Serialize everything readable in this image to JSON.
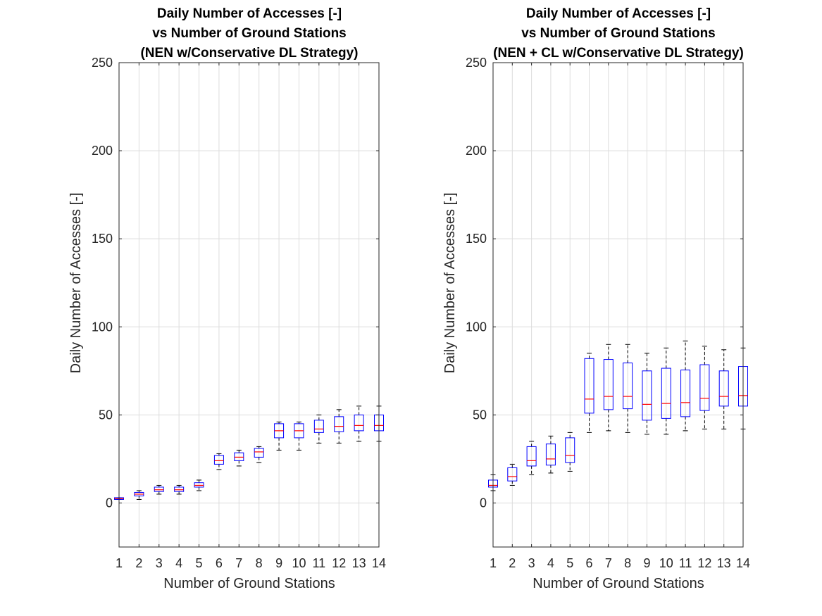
{
  "chart_data": [
    {
      "type": "box",
      "title": [
        "Daily Number of Accesses [-]",
        "vs Number of Ground Stations",
        "(NEN w/Conservative DL Strategy)"
      ],
      "xlabel": "Number of Ground Stations",
      "ylabel": "Daily Number of Accesses [-]",
      "xlim": [
        1,
        14
      ],
      "ylim": [
        -25,
        250
      ],
      "xticks": [
        1,
        2,
        3,
        4,
        5,
        6,
        7,
        8,
        9,
        10,
        11,
        12,
        13,
        14
      ],
      "yticks": [
        0,
        50,
        100,
        150,
        200,
        250
      ],
      "grid": true,
      "boxes": [
        {
          "x": 1,
          "min": 2,
          "q1": 2,
          "median": 2.5,
          "q3": 3,
          "max": 3
        },
        {
          "x": 2,
          "min": 2,
          "q1": 4,
          "median": 5,
          "q3": 6,
          "max": 7
        },
        {
          "x": 3,
          "min": 5,
          "q1": 6.5,
          "median": 7.5,
          "q3": 9,
          "max": 10
        },
        {
          "x": 4,
          "min": 5,
          "q1": 6.5,
          "median": 7.5,
          "q3": 9,
          "max": 10
        },
        {
          "x": 5,
          "min": 7,
          "q1": 9,
          "median": 10,
          "q3": 11.5,
          "max": 13
        },
        {
          "x": 6,
          "min": 19,
          "q1": 22,
          "median": 24,
          "q3": 27,
          "max": 28
        },
        {
          "x": 7,
          "min": 21,
          "q1": 24,
          "median": 26,
          "q3": 28.5,
          "max": 30
        },
        {
          "x": 8,
          "min": 23,
          "q1": 26,
          "median": 29,
          "q3": 31,
          "max": 32
        },
        {
          "x": 9,
          "min": 30,
          "q1": 37,
          "median": 41,
          "q3": 45,
          "max": 46
        },
        {
          "x": 10,
          "min": 30,
          "q1": 37,
          "median": 41,
          "q3": 45,
          "max": 46
        },
        {
          "x": 11,
          "min": 34,
          "q1": 40,
          "median": 42,
          "q3": 47,
          "max": 50
        },
        {
          "x": 12,
          "min": 34,
          "q1": 40.5,
          "median": 43.5,
          "q3": 49,
          "max": 53
        },
        {
          "x": 13,
          "min": 35,
          "q1": 41,
          "median": 44,
          "q3": 50,
          "max": 55
        },
        {
          "x": 14,
          "min": 35,
          "q1": 41,
          "median": 44,
          "q3": 50,
          "max": 55
        }
      ]
    },
    {
      "type": "box",
      "title": [
        "Daily Number of Accesses [-]",
        "vs Number of Ground Stations",
        "(NEN + CL w/Conservative DL Strategy)"
      ],
      "xlabel": "Number of Ground Stations",
      "ylabel": "Daily Number of Accesses [-]",
      "xlim": [
        1,
        14
      ],
      "ylim": [
        -25,
        250
      ],
      "xticks": [
        1,
        2,
        3,
        4,
        5,
        6,
        7,
        8,
        9,
        10,
        11,
        12,
        13,
        14
      ],
      "yticks": [
        0,
        50,
        100,
        150,
        200,
        250
      ],
      "grid": true,
      "boxes": [
        {
          "x": 1,
          "min": 7,
          "q1": 9,
          "median": 10,
          "q3": 13,
          "max": 16
        },
        {
          "x": 2,
          "min": 10,
          "q1": 12.5,
          "median": 15,
          "q3": 20,
          "max": 22
        },
        {
          "x": 3,
          "min": 16,
          "q1": 21,
          "median": 24,
          "q3": 32,
          "max": 35
        },
        {
          "x": 4,
          "min": 17,
          "q1": 21.5,
          "median": 25,
          "q3": 33.5,
          "max": 38
        },
        {
          "x": 5,
          "min": 18,
          "q1": 23,
          "median": 27,
          "q3": 37,
          "max": 40
        },
        {
          "x": 6,
          "min": 40,
          "q1": 51,
          "median": 59,
          "q3": 82,
          "max": 85
        },
        {
          "x": 7,
          "min": 41,
          "q1": 53,
          "median": 60.5,
          "q3": 81.5,
          "max": 90
        },
        {
          "x": 8,
          "min": 40,
          "q1": 53.5,
          "median": 60.5,
          "q3": 79.5,
          "max": 90
        },
        {
          "x": 9,
          "min": 39,
          "q1": 47,
          "median": 56,
          "q3": 75,
          "max": 85
        },
        {
          "x": 10,
          "min": 39,
          "q1": 48,
          "median": 56.5,
          "q3": 76.5,
          "max": 88
        },
        {
          "x": 11,
          "min": 41,
          "q1": 49,
          "median": 57,
          "q3": 75.5,
          "max": 92
        },
        {
          "x": 12,
          "min": 42,
          "q1": 52.5,
          "median": 59.5,
          "q3": 78.5,
          "max": 89
        },
        {
          "x": 13,
          "min": 42,
          "q1": 55,
          "median": 60.5,
          "q3": 75,
          "max": 87
        },
        {
          "x": 14,
          "min": 42,
          "q1": 55,
          "median": 61,
          "q3": 77.5,
          "max": 88
        }
      ]
    }
  ]
}
